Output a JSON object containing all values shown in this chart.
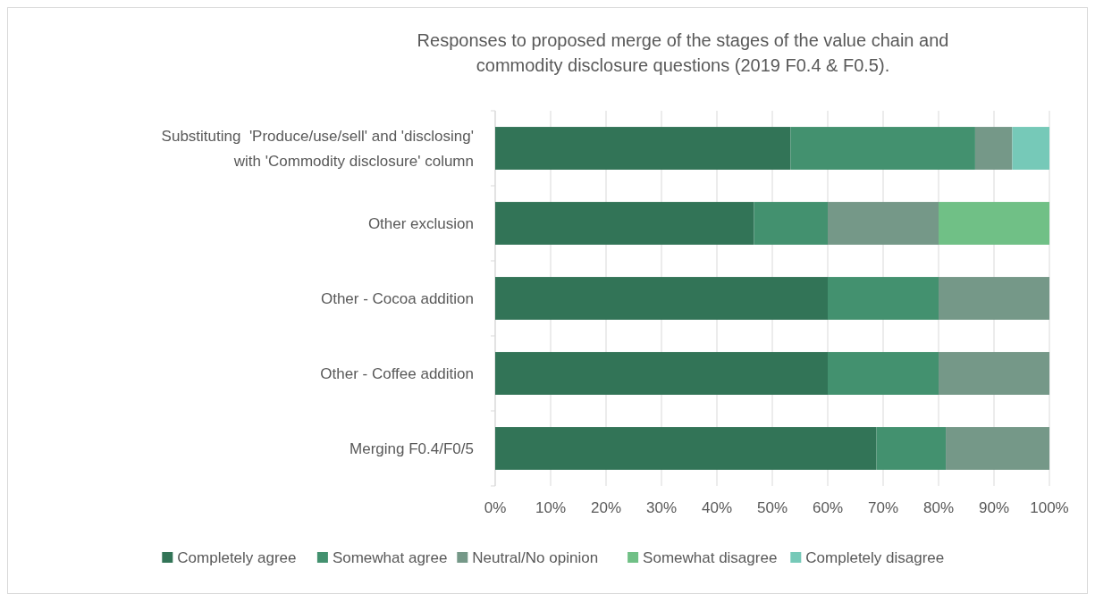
{
  "chart_data": {
    "type": "bar",
    "orientation": "horizontal",
    "stacked": true,
    "title": "Responses to proposed merge of the stages of the value chain and commodity disclosure questions (2019 F0.4 & F0.5).",
    "categories": [
      "Substituting  'Produce/use/sell' and 'disclosing' with 'Commodity disclosure' column",
      "Other exclusion",
      "Other - Cocoa addition",
      "Other - Coffee addition",
      "Merging F0.4/F0/5"
    ],
    "series": [
      {
        "name": "Completely agree",
        "color": "#327457",
        "values": [
          53.3,
          46.7,
          60,
          60,
          68.8
        ]
      },
      {
        "name": "Somewhat agree",
        "color": "#43916f",
        "values": [
          33.3,
          13.3,
          20,
          20,
          12.5
        ]
      },
      {
        "name": "Neutral/No opinion",
        "color": "#759888",
        "values": [
          6.7,
          20,
          20,
          20,
          18.7
        ]
      },
      {
        "name": "Somewhat disagree",
        "color": "#70c086",
        "values": [
          0,
          20,
          0,
          0,
          0
        ]
      },
      {
        "name": "Completely disagree",
        "color": "#76c9b8",
        "values": [
          6.7,
          0,
          0,
          0,
          0
        ]
      }
    ],
    "xlim": [
      0,
      100
    ],
    "xticks": [
      {
        "value": 0,
        "label": "0%"
      },
      {
        "value": 10,
        "label": "10%"
      },
      {
        "value": 20,
        "label": "20%"
      },
      {
        "value": 30,
        "label": "30%"
      },
      {
        "value": 40,
        "label": "40%"
      },
      {
        "value": 50,
        "label": "50%"
      },
      {
        "value": 60,
        "label": "60%"
      },
      {
        "value": 70,
        "label": "70%"
      },
      {
        "value": 80,
        "label": "80%"
      },
      {
        "value": 90,
        "label": "90%"
      },
      {
        "value": 100,
        "label": "100%"
      }
    ],
    "grid": "x",
    "legend": "bottom"
  }
}
